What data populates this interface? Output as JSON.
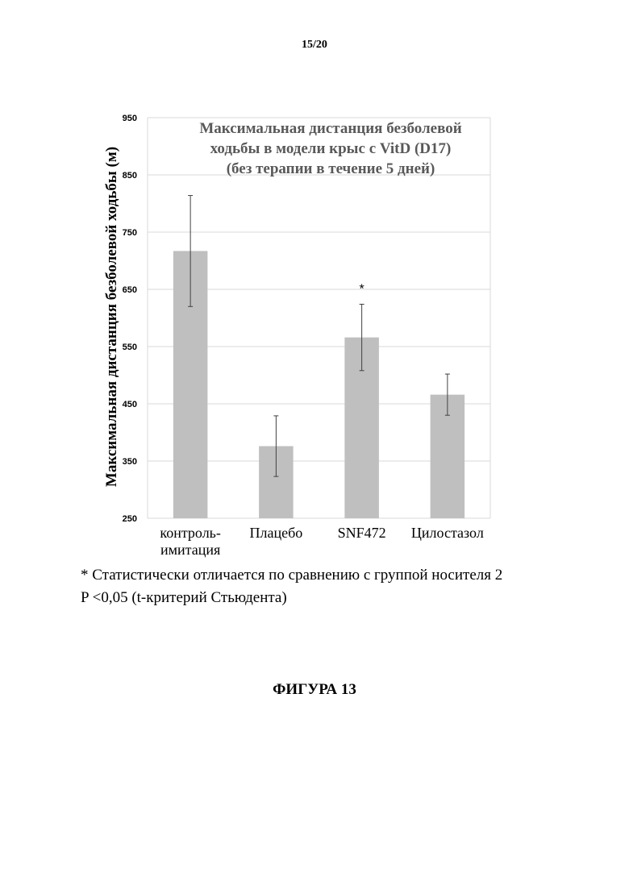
{
  "page": {
    "number": "15/20",
    "footnote_lines": [
      "* Статистически отличается по сравнению с группой носителя 2",
      "P <0,05 (t-критерий Стьюдента)"
    ],
    "figure_caption": "ФИГУРА 13"
  },
  "chart_data": {
    "type": "bar",
    "title_lines": [
      "Максимальная дистанция безболевой",
      "ходьбы в модели крыс с VitD  (D17)",
      "(без терапии в течение 5 дней)"
    ],
    "ylabel": "Максимальная дистанция  безболевой ходьбы (м)",
    "xlabel": "",
    "categories": [
      [
        "контроль-",
        "имитация"
      ],
      [
        "Плацебо"
      ],
      [
        "SNF472"
      ],
      [
        "Цилостазол"
      ]
    ],
    "values": [
      717,
      376,
      566,
      466
    ],
    "errors": [
      97,
      53,
      58,
      36
    ],
    "annotations": [
      "",
      "",
      "*",
      ""
    ],
    "ylim": [
      250,
      950
    ],
    "yticks": [
      250,
      350,
      450,
      550,
      650,
      750,
      850,
      950
    ],
    "grid": true,
    "bar_color": "#bfbfbf",
    "grid_color": "#d9d9d9"
  }
}
